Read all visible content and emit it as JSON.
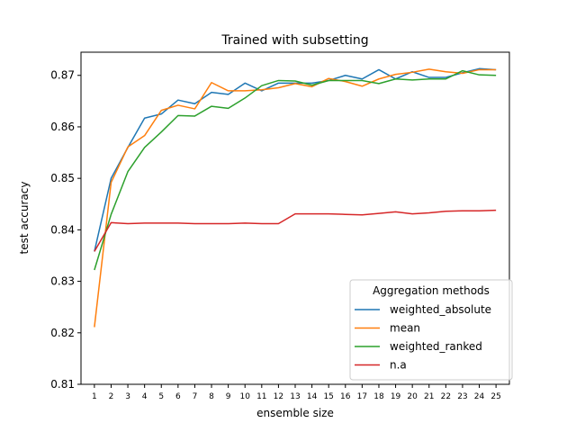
{
  "chart_data": {
    "type": "line",
    "title": "Trained with subsetting",
    "xlabel": "ensemble size",
    "ylabel": "test accuracy",
    "x": [
      1,
      2,
      3,
      4,
      5,
      6,
      7,
      8,
      9,
      10,
      11,
      12,
      13,
      14,
      15,
      16,
      17,
      18,
      19,
      20,
      21,
      22,
      23,
      24,
      25
    ],
    "xlim": [
      0.2,
      25.8
    ],
    "ylim": [
      0.81,
      0.8745
    ],
    "yticks": [
      "0.81",
      "0.82",
      "0.83",
      "0.84",
      "0.85",
      "0.86",
      "0.87"
    ],
    "grid": false,
    "legend": {
      "title": "Aggregation methods",
      "placement": "lower right"
    },
    "series": [
      {
        "name": "weighted_absolute",
        "color": "#1f77b4",
        "values": [
          0.8358,
          0.85,
          0.856,
          0.8617,
          0.8625,
          0.8652,
          0.8645,
          0.8667,
          0.8663,
          0.8685,
          0.867,
          0.8685,
          0.8685,
          0.8685,
          0.869,
          0.87,
          0.8693,
          0.8711,
          0.8693,
          0.8707,
          0.8696,
          0.8696,
          0.8705,
          0.8713,
          0.8711
        ]
      },
      {
        "name": "mean",
        "color": "#ff7f0e",
        "values": [
          0.8211,
          0.8492,
          0.8561,
          0.8583,
          0.8632,
          0.8642,
          0.8635,
          0.8686,
          0.867,
          0.867,
          0.8672,
          0.8676,
          0.8684,
          0.8678,
          0.8694,
          0.8688,
          0.8679,
          0.8693,
          0.8702,
          0.8706,
          0.8712,
          0.8707,
          0.8704,
          0.8711,
          0.8711
        ]
      },
      {
        "name": "weighted_ranked",
        "color": "#2ca02c",
        "values": [
          0.8322,
          0.843,
          0.8513,
          0.856,
          0.859,
          0.8622,
          0.8621,
          0.864,
          0.8636,
          0.8656,
          0.868,
          0.869,
          0.8689,
          0.8681,
          0.869,
          0.869,
          0.869,
          0.8684,
          0.8693,
          0.8691,
          0.8693,
          0.8693,
          0.8709,
          0.8701,
          0.87
        ]
      },
      {
        "name": "n.a",
        "color": "#d62728",
        "values": [
          0.8358,
          0.8414,
          0.8412,
          0.8413,
          0.8413,
          0.8413,
          0.8412,
          0.8412,
          0.8412,
          0.8413,
          0.8412,
          0.8412,
          0.8431,
          0.8431,
          0.8431,
          0.843,
          0.8429,
          0.8432,
          0.8435,
          0.8431,
          0.8433,
          0.8436,
          0.8437,
          0.8437,
          0.8438
        ]
      }
    ]
  }
}
